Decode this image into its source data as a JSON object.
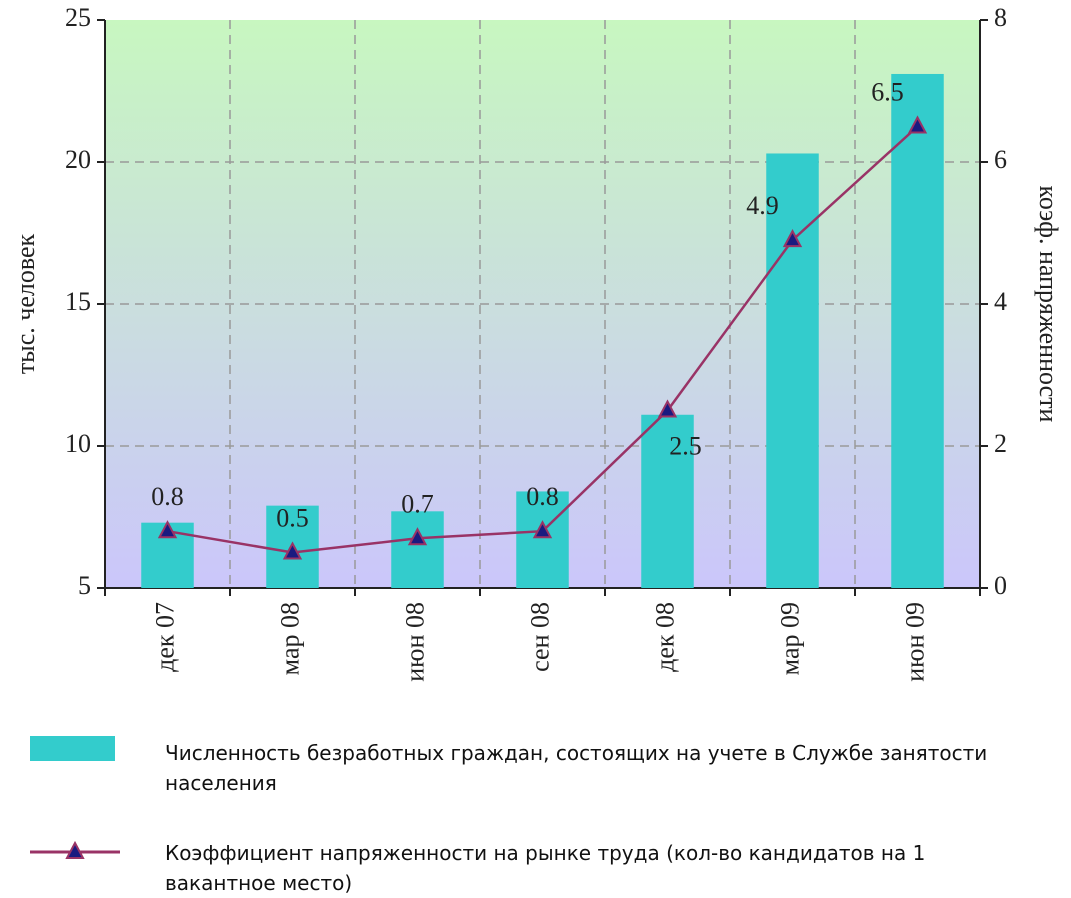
{
  "chart_data": {
    "type": "bar",
    "categories": [
      "дек 07",
      "мар 08",
      "июн 08",
      "сен 08",
      "дек 08",
      "мар 09",
      "июн 09"
    ],
    "series": [
      {
        "name": "Численность безработных граждан, состоящих на учете в Службе занятости населения",
        "type": "bar",
        "color": "#33cccc",
        "values": [
          7.3,
          7.9,
          7.7,
          8.4,
          11.1,
          20.3,
          23.1
        ]
      },
      {
        "name": "Коэффициент напряженности  на рынке труда (кол-во кандидатов на 1 вакантное место)",
        "type": "line",
        "axis": "y2",
        "color": "#993366",
        "marker_color": "#1a1a80",
        "values": [
          0.8,
          0.5,
          0.7,
          0.8,
          2.5,
          4.9,
          6.5
        ]
      }
    ],
    "ylabel": "тыс. человек",
    "y2label": "коэф. напряженности",
    "ylim": [
      5,
      25
    ],
    "yticks": [
      5,
      10,
      15,
      20,
      25
    ],
    "y2lim": [
      0,
      8
    ],
    "y2ticks": [
      0,
      2,
      4,
      6,
      8
    ],
    "grid": true
  }
}
